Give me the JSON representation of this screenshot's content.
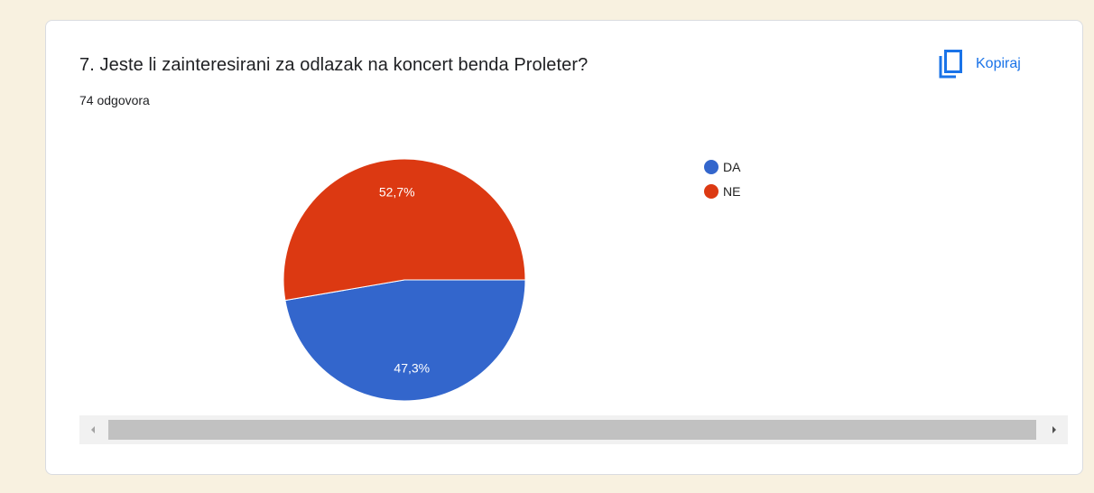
{
  "question": {
    "title": "7. Jeste li zainteresirani za odlazak na koncert benda Proleter?",
    "response_count": "74 odgovora"
  },
  "copy_button": {
    "label": "Kopiraj",
    "icon": "copy-icon"
  },
  "colors": {
    "DA": "#3366cc",
    "NE": "#dc3912",
    "accent": "#1a73e8"
  },
  "chart_data": {
    "type": "pie",
    "title": "",
    "slices": [
      {
        "label": "DA",
        "value": 47.3,
        "display": "47,3%",
        "color": "#3366cc"
      },
      {
        "label": "NE",
        "value": 52.7,
        "display": "52,7%",
        "color": "#dc3912"
      }
    ],
    "legend": {
      "placement": "right",
      "entries": [
        "DA",
        "NE"
      ]
    }
  }
}
